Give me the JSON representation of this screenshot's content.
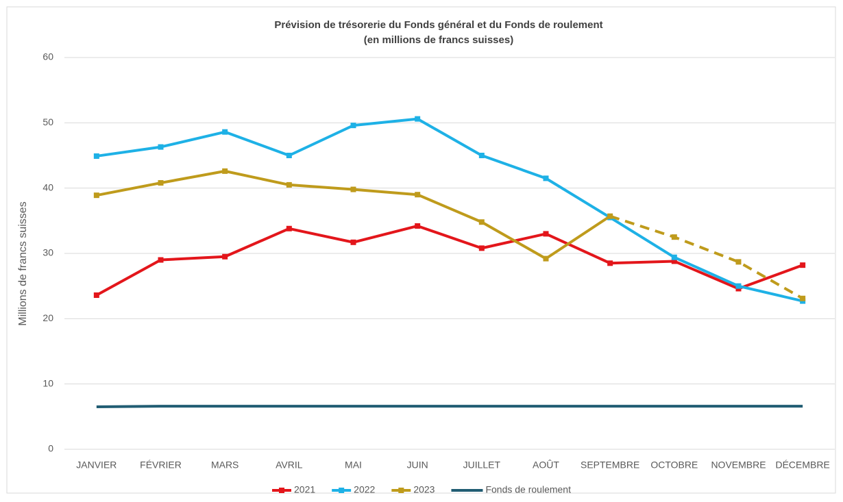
{
  "chart_data": {
    "type": "line",
    "title": "Prévision de trésorerie du Fonds général et du Fonds de roulement",
    "subtitle": "(en millions de francs suisses)",
    "y_label": "Millions de francs suisses",
    "categories": [
      "JANVIER",
      "FÉVRIER",
      "MARS",
      "AVRIL",
      "MAI",
      "JUIN",
      "JUILLET",
      "AOÛT",
      "SEPTEMBRE",
      "OCTOBRE",
      "NOVEMBRE",
      "DÉCEMBRE"
    ],
    "series": [
      {
        "name": "2021",
        "color": "#e3161b",
        "marker": true,
        "values": [
          23.6,
          29.0,
          29.5,
          33.8,
          31.7,
          34.2,
          30.8,
          33.0,
          28.5,
          28.8,
          24.6,
          28.2
        ]
      },
      {
        "name": "2022",
        "color": "#1eb1e6",
        "marker": true,
        "values": [
          44.9,
          46.3,
          48.6,
          45.0,
          49.6,
          50.6,
          45.0,
          41.5,
          35.5,
          29.4,
          25.0,
          22.7
        ]
      },
      {
        "name": "2023",
        "color": "#bf9b1c",
        "marker": true,
        "dash_from_index": 8,
        "values": [
          38.9,
          40.8,
          42.6,
          40.5,
          39.8,
          39.0,
          34.8,
          29.2,
          35.7,
          32.5,
          28.7,
          23.1
        ]
      },
      {
        "name": "Fonds de roulement",
        "color": "#215d73",
        "marker": false,
        "values": [
          6.5,
          6.6,
          6.6,
          6.6,
          6.6,
          6.6,
          6.6,
          6.6,
          6.6,
          6.6,
          6.6,
          6.6
        ]
      }
    ],
    "ylim": [
      0,
      60
    ],
    "yticks": [
      0,
      10,
      20,
      30,
      40,
      50,
      60
    ],
    "grid": true,
    "legend": "bottom"
  }
}
